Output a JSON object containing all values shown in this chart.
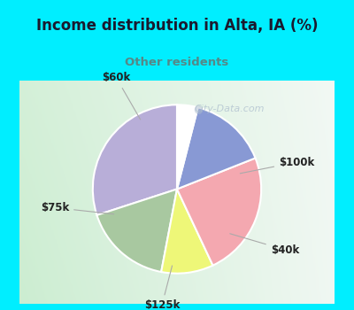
{
  "title": "Income distribution in Alta, IA (%)",
  "subtitle": "Other residents",
  "slices": [
    {
      "label": "$100k",
      "value": 30,
      "color": "#b8aed8"
    },
    {
      "label": "$40k",
      "value": 17,
      "color": "#a8c8a0"
    },
    {
      "label": "$125k",
      "value": 10,
      "color": "#eef778"
    },
    {
      "label": "$75k",
      "value": 24,
      "color": "#f4a8b0"
    },
    {
      "label": "$60k",
      "value": 15,
      "color": "#8899d4"
    },
    {
      "label": "",
      "value": 4,
      "color": "#ffffff"
    }
  ],
  "startangle": 90,
  "bg_top": "#00eeff",
  "bg_chart_left": "#c8e8c8",
  "bg_chart_right": "#e8f4f0",
  "title_color": "#1a1a2e",
  "subtitle_color": "#558888",
  "watermark": "City-Data.com",
  "watermark_color": "#aabbcc",
  "label_color": "#222222",
  "line_color": "#aaaaaa",
  "border_color": "#00eeff",
  "border_width": 8,
  "label_fontsize": 8.5,
  "title_fontsize": 12,
  "subtitle_fontsize": 9.5
}
